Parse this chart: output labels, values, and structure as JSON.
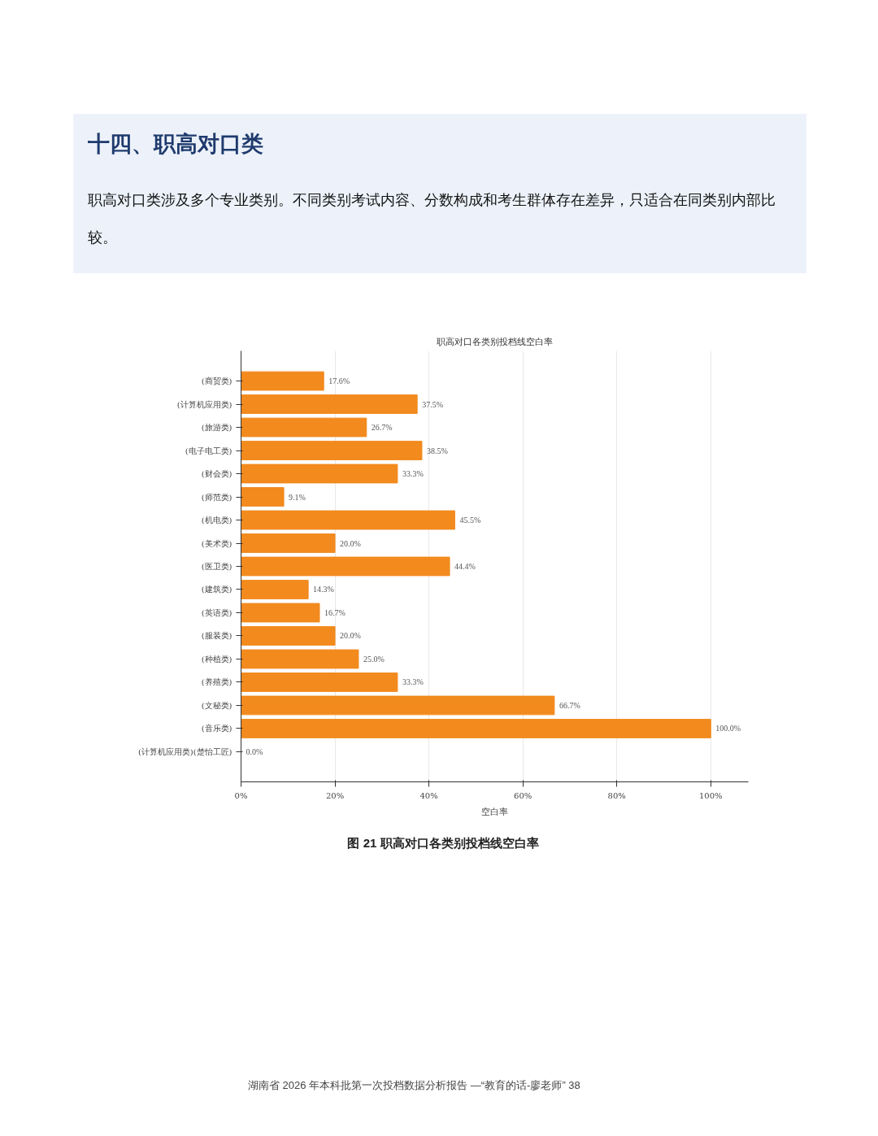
{
  "chart_data": {
    "type": "bar",
    "orientation": "horizontal",
    "title": "职高对口各类别投档线空白率",
    "xlabel": "空白率",
    "categories": [
      "(商贸类)",
      "(计算机应用类)",
      "(旅游类)",
      "(电子电工类)",
      "(财会类)",
      "(师范类)",
      "(机电类)",
      "(美术类)",
      "(医卫类)",
      "(建筑类)",
      "(英语类)",
      "(服装类)",
      "(种植类)",
      "(养殖类)",
      "(文秘类)",
      "(音乐类)",
      "(计算机应用类)(楚怡工匠)"
    ],
    "values": [
      17.6,
      37.5,
      26.7,
      38.5,
      33.3,
      9.1,
      45.5,
      20.0,
      44.4,
      14.3,
      16.7,
      20.0,
      25.0,
      33.3,
      66.7,
      100.0,
      0.0
    ],
    "value_labels": [
      "17.6%",
      "37.5%",
      "26.7%",
      "38.5%",
      "33.3%",
      "9.1%",
      "45.5%",
      "20.0%",
      "44.4%",
      "14.3%",
      "16.7%",
      "20.0%",
      "25.0%",
      "33.3%",
      "66.7%",
      "100.0%",
      "0.0%"
    ],
    "color": "#f28a1e",
    "xlim": [
      0,
      108
    ],
    "xticks": [
      {
        "value": 0,
        "label": "0%"
      },
      {
        "value": 20,
        "label": "20%"
      },
      {
        "value": 40,
        "label": "40%"
      },
      {
        "value": 60,
        "label": "60%"
      },
      {
        "value": 80,
        "label": "80%"
      },
      {
        "value": 100,
        "label": "100%"
      }
    ],
    "grid": "x",
    "annotations": [
      "十四、职高对口类",
      "职高对口类涉及多个专业类别。不同类别考试内容、分数构成和考生群体存在差异，只适合在同类别内部比较。",
      "图 21  职高对口各类别投档线空白率",
      "湖南省 2026 年本科批第一次投档数据分析报告 —“教育的话-廖老师” 38"
    ]
  }
}
